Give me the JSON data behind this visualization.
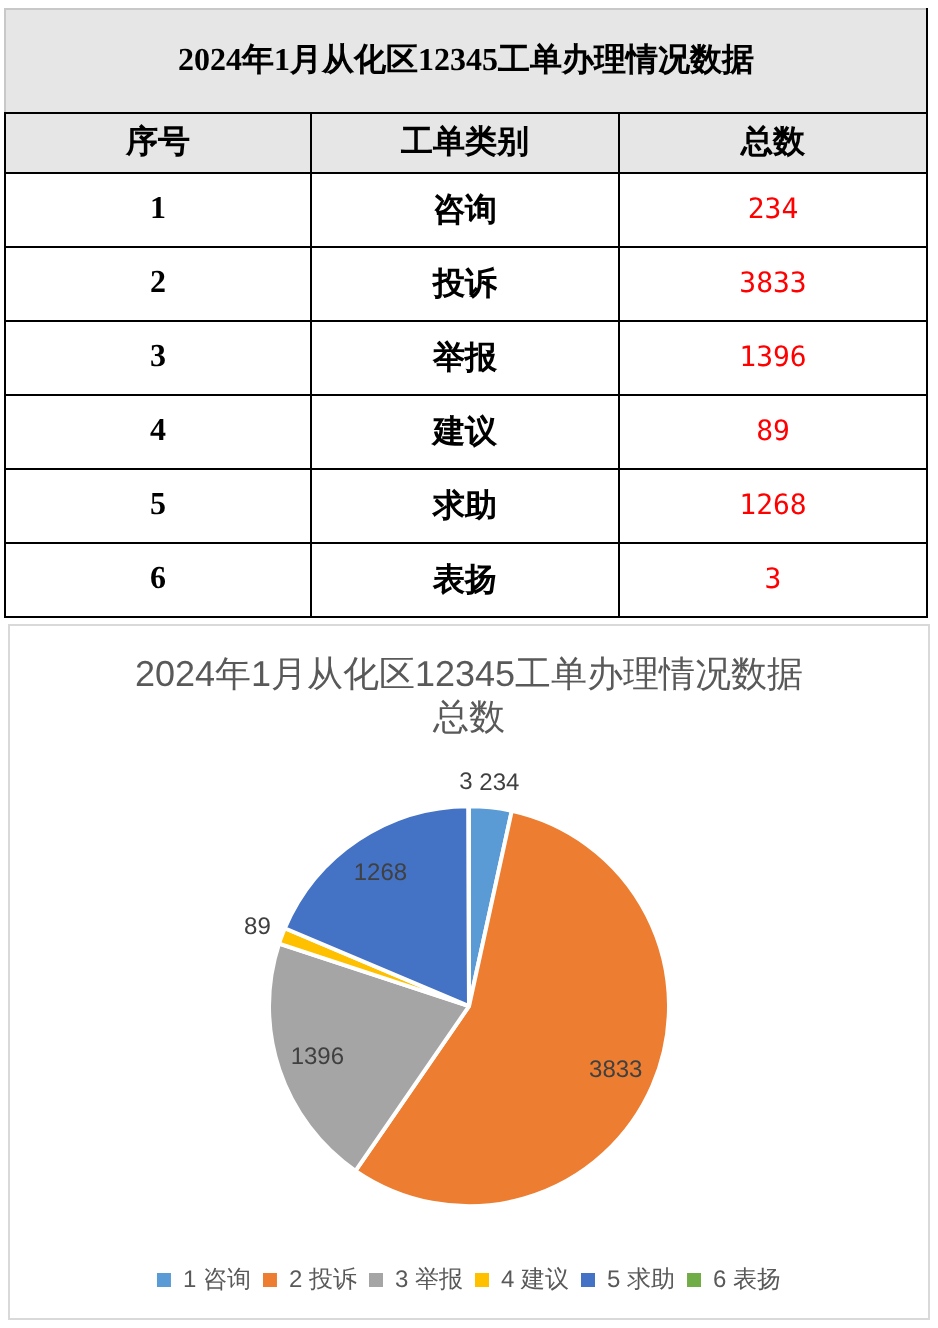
{
  "chart_data": [
    {
      "type": "heatmap",
      "title": "2024年1月从化区12345工单办理情况数据",
      "ylabel": "序号",
      "categories": [
        "工单类别",
        "总数"
      ],
      "y_categories": [
        "1",
        "2",
        "3",
        "4",
        "5",
        "6"
      ],
      "cells": [
        [
          null,
          null
        ],
        [
          null,
          null
        ],
        [
          null,
          null
        ],
        [
          null,
          null
        ],
        [
          null,
          null
        ],
        [
          null,
          null
        ]
      ],
      "cell_labels": [
        [
          "咨询",
          "234"
        ],
        [
          "投诉",
          "3833"
        ],
        [
          "举报",
          "1396"
        ],
        [
          "建议",
          "89"
        ],
        [
          "求助",
          "1268"
        ],
        [
          "表扬",
          "3"
        ]
      ],
      "color": "#ff0000"
    },
    {
      "type": "pie",
      "title": "2024年1月从化区12345工单办理情况数据",
      "subtitle": "总数",
      "categories": [
        "1 咨询",
        "2 投诉",
        "3 举报",
        "4 建议",
        "5 求助",
        "6 表扬"
      ],
      "values": [
        234,
        3833,
        1396,
        89,
        1268,
        3
      ],
      "colors": [
        "#5b9bd5",
        "#ed7d31",
        "#a5a5a5",
        "#ffc000",
        "#4472c4",
        "#70ad47"
      ],
      "data_labels": true,
      "legend": "bottom"
    }
  ]
}
